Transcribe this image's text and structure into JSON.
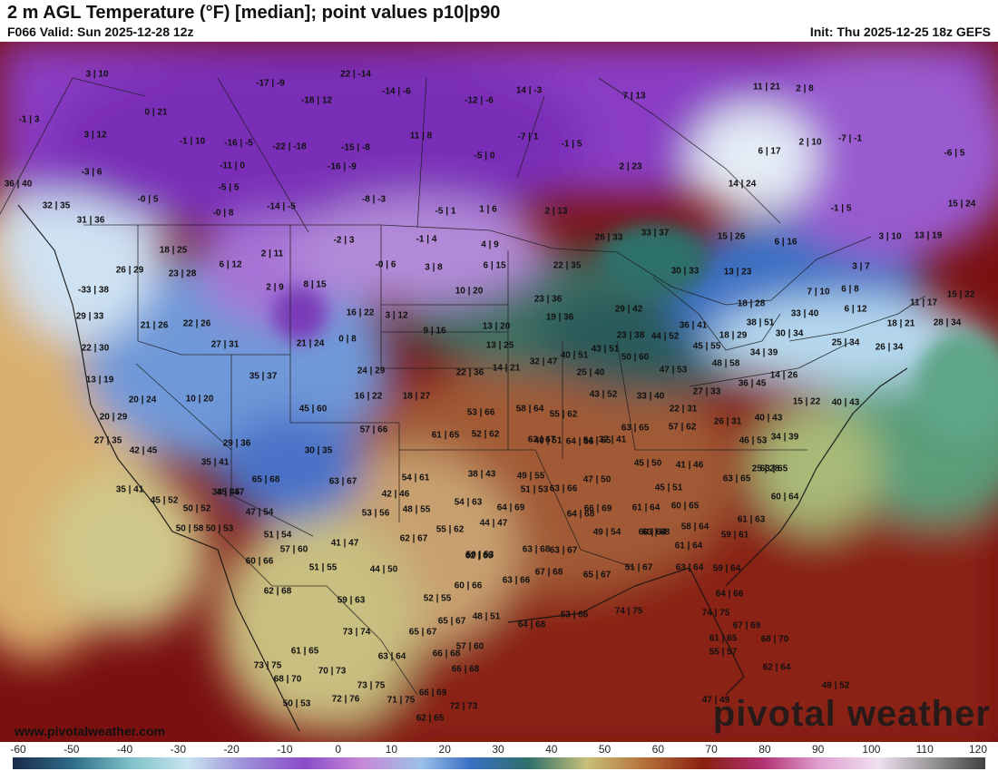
{
  "header": {
    "title": "2 m AGL Temperature (°F) [median]; point values p10|p90",
    "valid": "F066 Valid: Sun 2025-12-28 12z",
    "init": "Init: Thu 2025-12-25 18z GEFS"
  },
  "footer": {
    "website": "www.pivotalweather.com",
    "brand": "pivotal weather"
  },
  "scale": {
    "ticks": [
      "-60",
      "-50",
      "-40",
      "-30",
      "-20",
      "-10",
      "0",
      "10",
      "20",
      "30",
      "40",
      "50",
      "60",
      "70",
      "80",
      "90",
      "100",
      "110",
      "120"
    ]
  },
  "colors": {
    "very_cold": "#7a2fb8",
    "cold": "#b07ee0",
    "freezing": "#cfe6f5",
    "blue": "#3f7fd0",
    "cool": "#2f6f6a",
    "mild": "#c8c07a",
    "warm": "#b5703a",
    "hot": "#7a1010"
  },
  "points": [
    {
      "t": "3 | 10"
    },
    {
      "t": "0 | 21"
    },
    {
      "t": "-1 | 3"
    },
    {
      "t": "3 | 12"
    },
    {
      "t": "-3 | 6"
    },
    {
      "t": "36 | 40"
    },
    {
      "t": "32 | 35"
    },
    {
      "t": "31 | 36"
    },
    {
      "t": "-17 | -9"
    },
    {
      "t": "22 | -14"
    },
    {
      "t": "-18 | 12"
    },
    {
      "t": "-14 | -6"
    },
    {
      "t": "-1 | 10"
    },
    {
      "t": "-16 | -5"
    },
    {
      "t": "-22 | -18"
    },
    {
      "t": "-11 | 0"
    },
    {
      "t": "-5 | 5"
    },
    {
      "t": "-0 | 5"
    },
    {
      "t": "-0 | 8"
    },
    {
      "t": "-14 | -5"
    },
    {
      "t": "-15 | -8"
    },
    {
      "t": "-16 | -9"
    },
    {
      "t": "-8 | -3"
    },
    {
      "t": "-12 | -6"
    },
    {
      "t": "14 | -3"
    },
    {
      "t": "11 | 8"
    },
    {
      "t": "-5 | 0"
    },
    {
      "t": "-7 | 1"
    },
    {
      "t": "-1 | 5"
    },
    {
      "t": "7 | 13"
    },
    {
      "t": "2 | 23"
    },
    {
      "t": "-5 | 1"
    },
    {
      "t": "1 | 6"
    },
    {
      "t": "2 | 13"
    },
    {
      "t": "11 | 21"
    },
    {
      "t": "2 | 8"
    },
    {
      "t": "6 | 17"
    },
    {
      "t": "2 | 10"
    },
    {
      "t": "-7 | -1"
    },
    {
      "t": "-6 | 5"
    },
    {
      "t": "14 | 24"
    },
    {
      "t": "-1 | 5"
    },
    {
      "t": "15 | 24"
    },
    {
      "t": "3 | 10"
    },
    {
      "t": "13 | 19"
    },
    {
      "t": "15 | 26"
    },
    {
      "t": "6 | 16"
    },
    {
      "t": "3 | 7"
    },
    {
      "t": "15 | 22"
    },
    {
      "t": "7 | 10"
    },
    {
      "t": "6 | 8"
    },
    {
      "t": "6 | 12"
    },
    {
      "t": "11 | 17"
    },
    {
      "t": "18 | 21"
    },
    {
      "t": "28 | 34"
    },
    {
      "t": "18 | 25"
    },
    {
      "t": "26 | 29"
    },
    {
      "t": "23 | 28"
    },
    {
      "t": "6 | 12"
    },
    {
      "t": "2 | 11"
    },
    {
      "t": "-2 | 3"
    },
    {
      "t": "-1 | 4"
    },
    {
      "t": "4 | 9"
    },
    {
      "t": "-0 | 6"
    },
    {
      "t": "3 | 8"
    },
    {
      "t": "6 | 15"
    },
    {
      "t": "26 | 33"
    },
    {
      "t": "33 | 37"
    },
    {
      "t": "22 | 35"
    },
    {
      "t": "30 | 33"
    },
    {
      "t": "13 | 23"
    },
    {
      "t": "-33 | 38"
    },
    {
      "t": "2 | 9"
    },
    {
      "t": "8 | 15"
    },
    {
      "t": "10 | 20"
    },
    {
      "t": "23 | 36"
    },
    {
      "t": "18 | 28"
    },
    {
      "t": "29 | 33"
    },
    {
      "t": "21 | 26"
    },
    {
      "t": "22 | 26"
    },
    {
      "t": "16 | 22"
    },
    {
      "t": "3 | 12"
    },
    {
      "t": "13 | 20"
    },
    {
      "t": "19 | 36"
    },
    {
      "t": "29 | 42"
    },
    {
      "t": "36 | 41"
    },
    {
      "t": "33 | 40"
    },
    {
      "t": "22 | 30"
    },
    {
      "t": "27 | 31"
    },
    {
      "t": "21 | 24"
    },
    {
      "t": "0 | 8"
    },
    {
      "t": "9 | 16"
    },
    {
      "t": "13 | 25"
    },
    {
      "t": "23 | 38"
    },
    {
      "t": "44 | 52"
    },
    {
      "t": "38 | 51"
    },
    {
      "t": "30 | 34"
    },
    {
      "t": "18 | 29"
    },
    {
      "t": "25 | 34"
    },
    {
      "t": "13 | 19"
    },
    {
      "t": "35 | 37"
    },
    {
      "t": "24 | 29"
    },
    {
      "t": "14 | 21"
    },
    {
      "t": "32 | 47"
    },
    {
      "t": "40 | 51"
    },
    {
      "t": "43 | 51"
    },
    {
      "t": "45 | 55"
    },
    {
      "t": "34 | 39"
    },
    {
      "t": "26 | 34"
    },
    {
      "t": "20 | 24"
    },
    {
      "t": "10 | 20"
    },
    {
      "t": "16 | 22"
    },
    {
      "t": "18 | 27"
    },
    {
      "t": "22 | 36"
    },
    {
      "t": "25 | 40"
    },
    {
      "t": "50 | 60"
    },
    {
      "t": "47 | 53"
    },
    {
      "t": "48 | 58"
    },
    {
      "t": "36 | 45"
    },
    {
      "t": "14 | 26"
    },
    {
      "t": "15 | 22"
    },
    {
      "t": "40 | 43"
    },
    {
      "t": "20 | 29"
    },
    {
      "t": "45 | 60"
    },
    {
      "t": "53 | 66"
    },
    {
      "t": "58 | 64"
    },
    {
      "t": "55 | 62"
    },
    {
      "t": "43 | 52"
    },
    {
      "t": "33 | 40"
    },
    {
      "t": "22 | 31"
    },
    {
      "t": "27 | 33"
    },
    {
      "t": "26 | 31"
    },
    {
      "t": "40 | 43"
    },
    {
      "t": "27 | 35"
    },
    {
      "t": "57 | 66"
    },
    {
      "t": "61 | 65"
    },
    {
      "t": "52 | 62"
    },
    {
      "t": "40 | 51"
    },
    {
      "t": "54 | 65"
    },
    {
      "t": "63 | 65"
    },
    {
      "t": "57 | 62"
    },
    {
      "t": "46 | 53"
    },
    {
      "t": "34 | 39"
    },
    {
      "t": "42 | 45"
    },
    {
      "t": "29 | 36"
    },
    {
      "t": "30 | 35"
    },
    {
      "t": "63 | 67"
    },
    {
      "t": "64 | 66"
    },
    {
      "t": "37 | 41"
    },
    {
      "t": "35 | 41"
    },
    {
      "t": "45 | 47"
    },
    {
      "t": "45 | 50"
    },
    {
      "t": "41 | 46"
    },
    {
      "t": "63 | 65"
    },
    {
      "t": "54 | 61"
    },
    {
      "t": "38 | 43"
    },
    {
      "t": "49 | 55"
    },
    {
      "t": "65 | 68"
    },
    {
      "t": "63 | 67"
    },
    {
      "t": "25 | 28"
    },
    {
      "t": "35 | 41"
    },
    {
      "t": "38 | 45"
    },
    {
      "t": "42 | 46"
    },
    {
      "t": "47 | 50"
    },
    {
      "t": "45 | 51"
    },
    {
      "t": "63 | 65"
    },
    {
      "t": "45 | 52"
    },
    {
      "t": "50 | 52"
    },
    {
      "t": "51 | 53"
    },
    {
      "t": "63 | 66"
    },
    {
      "t": "60 | 64"
    },
    {
      "t": "47 | 54"
    },
    {
      "t": "53 | 56"
    },
    {
      "t": "48 | 55"
    },
    {
      "t": "54 | 63"
    },
    {
      "t": "64 | 69"
    },
    {
      "t": "64 | 68"
    },
    {
      "t": "61 | 63"
    },
    {
      "t": "50 | 58"
    },
    {
      "t": "50 | 53"
    },
    {
      "t": "51 | 54"
    },
    {
      "t": "44 | 47"
    },
    {
      "t": "66 | 69"
    },
    {
      "t": "61 | 64"
    },
    {
      "t": "60 | 65"
    },
    {
      "t": "60 | 64"
    },
    {
      "t": "55 | 62"
    },
    {
      "t": "62 | 65"
    },
    {
      "t": "63 | 68"
    },
    {
      "t": "58 | 64"
    },
    {
      "t": "62 | 67"
    },
    {
      "t": "57 | 60"
    },
    {
      "t": "41 | 47"
    },
    {
      "t": "49 | 54"
    },
    {
      "t": "59 | 61"
    },
    {
      "t": "60 | 66"
    },
    {
      "t": "51 | 55"
    },
    {
      "t": "44 | 50"
    },
    {
      "t": "50 | 53"
    },
    {
      "t": "63 | 68"
    },
    {
      "t": "63 | 67"
    },
    {
      "t": "61 | 64"
    },
    {
      "t": "51 | 67"
    },
    {
      "t": "63 | 64"
    },
    {
      "t": "59 | 64"
    },
    {
      "t": "62 | 68"
    },
    {
      "t": "59 | 63"
    },
    {
      "t": "52 | 55"
    },
    {
      "t": "63 | 66"
    },
    {
      "t": "67 | 68"
    },
    {
      "t": "65 | 67"
    },
    {
      "t": "64 | 66"
    },
    {
      "t": "60 | 66"
    },
    {
      "t": "64 | 68"
    },
    {
      "t": "63 | 66"
    },
    {
      "t": "74 | 75"
    },
    {
      "t": "74 | 75"
    },
    {
      "t": "73 | 74"
    },
    {
      "t": "65 | 67"
    },
    {
      "t": "48 | 51"
    },
    {
      "t": "65 | 67"
    },
    {
      "t": "67 | 69"
    },
    {
      "t": "61 | 65"
    },
    {
      "t": "61 | 65"
    },
    {
      "t": "63 | 64"
    },
    {
      "t": "66 | 68"
    },
    {
      "t": "57 | 60"
    },
    {
      "t": "55 | 57"
    },
    {
      "t": "68 | 70"
    },
    {
      "t": "73 | 75"
    },
    {
      "t": "70 | 73"
    },
    {
      "t": "66 | 68"
    },
    {
      "t": "62 | 64"
    },
    {
      "t": "68 | 70"
    },
    {
      "t": "73 | 75"
    },
    {
      "t": "66 | 69"
    },
    {
      "t": "49 | 52"
    },
    {
      "t": "50 | 53"
    },
    {
      "t": "72 | 76"
    },
    {
      "t": "71 | 75"
    },
    {
      "t": "72 | 73"
    },
    {
      "t": "47 | 49"
    },
    {
      "t": "62 | 65"
    },
    {
      "t": "61 | 64"
    },
    {
      "t": "49 | 52"
    }
  ]
}
